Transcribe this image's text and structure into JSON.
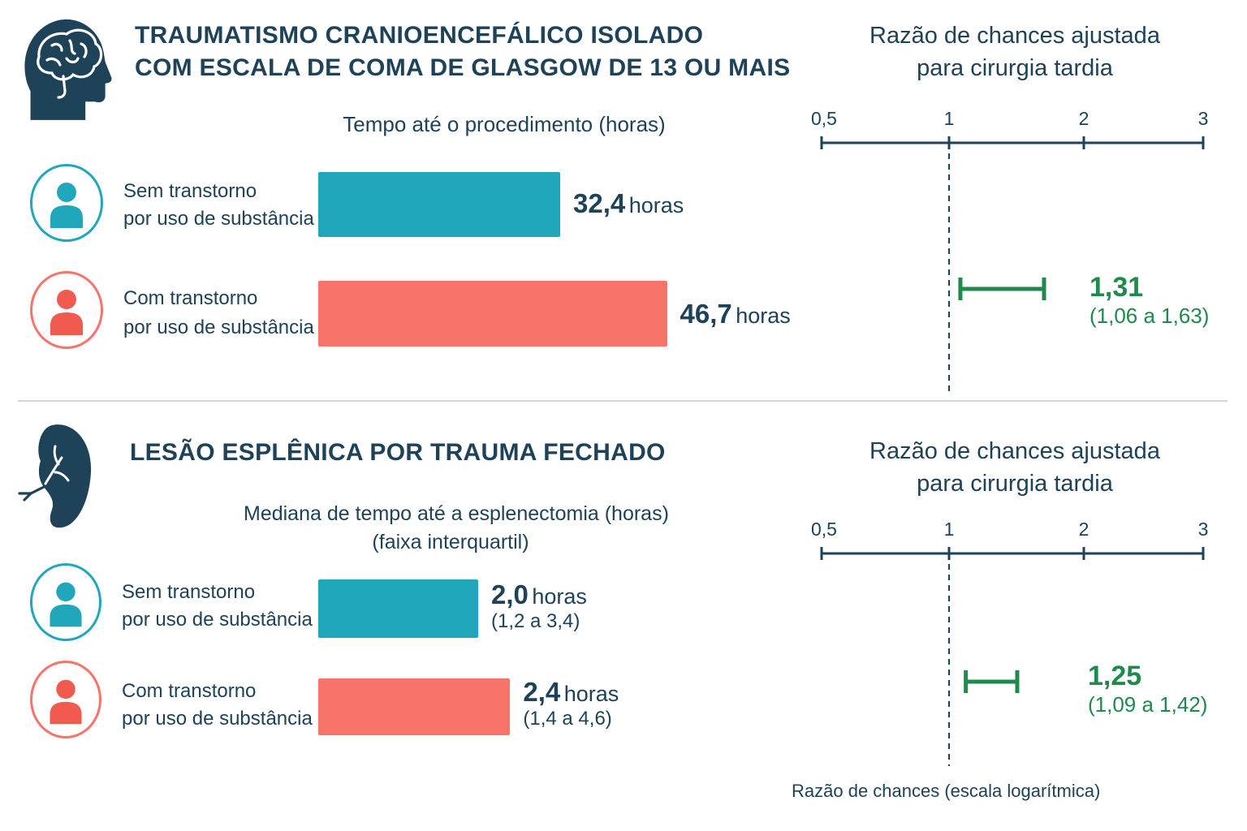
{
  "colors": {
    "without": "#20a7bb",
    "with": "#f8736a",
    "ci": "#1f8a4c",
    "axis": "#1e4257",
    "text": "#1e4257"
  },
  "section_tbi": {
    "icon": "head-brain-icon",
    "title_line1": "TRAUMATISMO CRANIOENCEFÁLICO ISOLADO",
    "title_line2": "COM ESCALA DE COMA DE GLASGOW DE 13 OU MAIS",
    "bar_subtitle": "Tempo até o procedimento (horas)",
    "groups": [
      {
        "label_line1": "Sem transtorno",
        "label_line2": "por uso de substância",
        "value_text": "32,4",
        "unit": "horas",
        "icon": "person-icon"
      },
      {
        "label_line1": "Com transtorno",
        "label_line2": "por uso de substância",
        "value_text": "46,7",
        "unit": "horas",
        "icon": "person-icon"
      }
    ],
    "or_title_line1": "Razão de chances ajustada",
    "or_title_line2": "para cirurgia tardia",
    "or_value_text": "1,31",
    "or_ci_text": "(1,06 a 1,63)"
  },
  "section_spleen": {
    "icon": "spleen-icon",
    "title": "LESÃO ESPLÊNICA POR TRAUMA FECHADO",
    "bar_subtitle_line1": "Mediana de tempo até a esplenectomia (horas)",
    "bar_subtitle_line2": "(faixa interquartil)",
    "groups": [
      {
        "label_line1": "Sem transtorno",
        "label_line2": "por uso de substância",
        "value_text": "2,0",
        "unit": "horas",
        "ci_text": "(1,2 a 3,4)",
        "icon": "person-icon"
      },
      {
        "label_line1": "Com transtorno",
        "label_line2": "por uso de substância",
        "value_text": "2,4",
        "unit": "horas",
        "ci_text": "(1,4 a 4,6)",
        "icon": "person-icon"
      }
    ],
    "or_title_line1": "Razão de chances ajustada",
    "or_title_line2": "para cirurgia tardia",
    "or_value_text": "1,25",
    "or_ci_text": "(1,09 a 1,42)"
  },
  "footer_axis_label": "Razão de chances (escala logarítmica)",
  "chart_data": [
    {
      "type": "bar",
      "orientation": "horizontal",
      "title": "Tempo até o procedimento (horas)",
      "categories": [
        "Sem transtorno por uso de substância",
        "Com transtorno por uso de substância"
      ],
      "values": [
        32.4,
        46.7
      ],
      "colors": [
        "#20a7bb",
        "#f8736a"
      ]
    },
    {
      "type": "scatter",
      "subtype": "forest",
      "title": "Razão de chances ajustada para cirurgia tardia",
      "xlabel": "Razão de chances (escala logarítmica)",
      "xscale": "log",
      "xlim": [
        0.5,
        3
      ],
      "ticks": [
        0.5,
        1,
        2,
        3
      ],
      "tick_labels": [
        "0,5",
        "1",
        "2",
        "3"
      ],
      "reference_line": 1,
      "estimate": 1.31,
      "ci": [
        1.06,
        1.63
      ]
    },
    {
      "type": "bar",
      "orientation": "horizontal",
      "title": "Mediana de tempo até a esplenectomia (horas) (faixa interquartil)",
      "categories": [
        "Sem transtorno por uso de substância",
        "Com transtorno por uso de substância"
      ],
      "values": [
        2.0,
        2.4
      ],
      "iqr": [
        [
          1.2,
          3.4
        ],
        [
          1.4,
          4.6
        ]
      ],
      "colors": [
        "#20a7bb",
        "#f8736a"
      ]
    },
    {
      "type": "scatter",
      "subtype": "forest",
      "title": "Razão de chances ajustada para cirurgia tardia",
      "xlabel": "Razão de chances (escala logarítmica)",
      "xscale": "log",
      "xlim": [
        0.5,
        3
      ],
      "ticks": [
        0.5,
        1,
        2,
        3
      ],
      "tick_labels": [
        "0,5",
        "1",
        "2",
        "3"
      ],
      "reference_line": 1,
      "estimate": 1.25,
      "ci": [
        1.09,
        1.42
      ]
    }
  ]
}
